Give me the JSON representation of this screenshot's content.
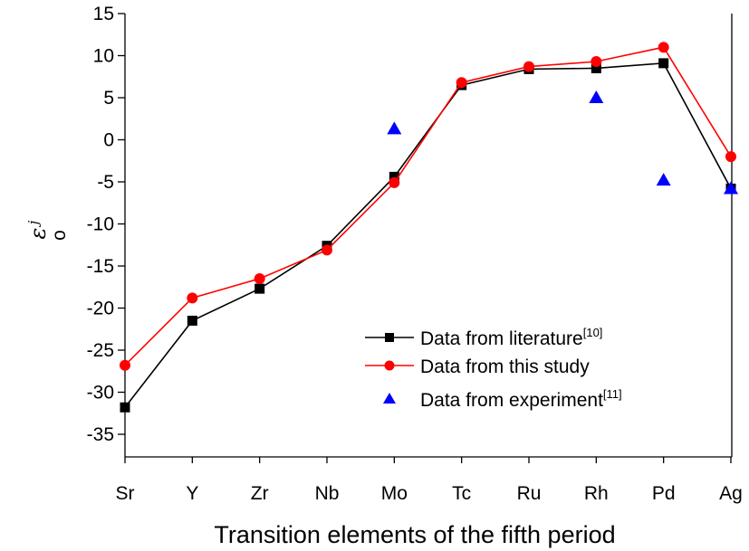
{
  "chart_data": {
    "type": "line",
    "title": "",
    "xlabel": "Transition elements of the fifth period",
    "ylabel": {
      "symbol": "ε",
      "subscript": "o",
      "superscript": "j"
    },
    "categories": [
      "Sr",
      "Y",
      "Zr",
      "Nb",
      "Mo",
      "Tc",
      "Ru",
      "Rh",
      "Pd",
      "Ag"
    ],
    "ylim": [
      -35,
      15
    ],
    "yticks": [
      15,
      10,
      5,
      0,
      -5,
      -10,
      -15,
      -20,
      -25,
      -30,
      -35
    ],
    "ytick_labels": [
      "15",
      "10",
      "5",
      "0",
      "-5",
      "-10",
      "-15",
      "-20",
      "-25",
      "-30",
      "-35"
    ],
    "grid": false,
    "legend_position": "lower-right",
    "series": [
      {
        "name": "Data from literature",
        "name_superscript": "[10]",
        "style": "line-square",
        "color": "#000000",
        "values": [
          -31.8,
          -21.5,
          -17.7,
          -12.6,
          -4.4,
          6.5,
          8.4,
          8.5,
          9.1,
          -5.8
        ]
      },
      {
        "name": "Data from this study",
        "name_superscript": "",
        "style": "line-circle",
        "color": "#ff0000",
        "values": [
          -26.8,
          -18.8,
          -16.5,
          -13.1,
          -5.1,
          6.8,
          8.7,
          9.3,
          11.0,
          -2.0
        ]
      },
      {
        "name": "Data from experiment",
        "name_superscript": "[11]",
        "style": "triangle",
        "color": "#0000ff",
        "points": [
          {
            "category": "Mo",
            "value": 1.3
          },
          {
            "category": "Rh",
            "value": 5.0
          },
          {
            "category": "Pd",
            "value": -4.8
          },
          {
            "category": "Ag",
            "value": -5.8
          }
        ]
      }
    ]
  }
}
